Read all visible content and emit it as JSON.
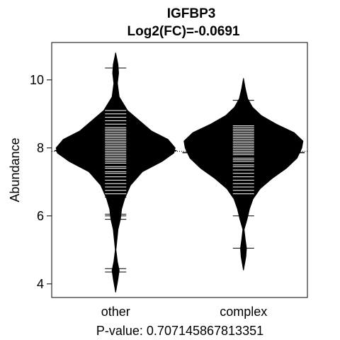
{
  "chart_data": {
    "type": "beanplot",
    "title": "IGFBP3",
    "subtitle": "Log2(FC)=-0.0691",
    "ylabel": "Abundance",
    "xlabel": "P-value: 0.707145867813351",
    "categories": [
      "other",
      "complex"
    ],
    "yticks": [
      4,
      6,
      8,
      10
    ],
    "ylim": [
      3.6,
      11.1
    ],
    "overall_mean": 7.9,
    "groups": [
      {
        "name": "other",
        "mean": 7.92,
        "density": [
          [
            3.75,
            0.0
          ],
          [
            4.15,
            0.04
          ],
          [
            4.4,
            0.06
          ],
          [
            4.65,
            0.03
          ],
          [
            5.0,
            0.005
          ],
          [
            5.6,
            0.04
          ],
          [
            5.9,
            0.08
          ],
          [
            6.2,
            0.1
          ],
          [
            6.5,
            0.15
          ],
          [
            6.9,
            0.25
          ],
          [
            7.3,
            0.45
          ],
          [
            7.6,
            0.78
          ],
          [
            7.85,
            0.98
          ],
          [
            8.0,
            1.0
          ],
          [
            8.25,
            0.88
          ],
          [
            8.5,
            0.6
          ],
          [
            8.8,
            0.4
          ],
          [
            9.1,
            0.2
          ],
          [
            9.5,
            0.06
          ],
          [
            9.9,
            0.03
          ],
          [
            10.2,
            0.05
          ],
          [
            10.45,
            0.04
          ],
          [
            10.8,
            0.0
          ]
        ],
        "points": [
          4.35,
          4.45,
          5.9,
          6.0,
          6.05,
          6.55,
          6.6,
          6.65,
          6.75,
          6.85,
          6.95,
          7.05,
          7.15,
          7.25,
          7.3,
          7.4,
          7.45,
          7.55,
          7.6,
          7.65,
          7.7,
          7.75,
          7.8,
          7.85,
          7.9,
          7.95,
          8.0,
          8.05,
          8.1,
          8.15,
          8.2,
          8.25,
          8.3,
          8.35,
          8.4,
          8.45,
          8.5,
          8.55,
          8.6,
          8.7,
          8.8,
          8.9,
          9.0,
          9.1,
          10.35
        ]
      },
      {
        "name": "complex",
        "mean": 7.86,
        "density": [
          [
            4.4,
            0.0
          ],
          [
            4.8,
            0.04
          ],
          [
            5.05,
            0.05
          ],
          [
            5.3,
            0.03
          ],
          [
            5.6,
            0.01
          ],
          [
            5.9,
            0.06
          ],
          [
            6.2,
            0.1
          ],
          [
            6.5,
            0.16
          ],
          [
            6.8,
            0.28
          ],
          [
            7.1,
            0.48
          ],
          [
            7.4,
            0.72
          ],
          [
            7.7,
            0.9
          ],
          [
            8.0,
            0.98
          ],
          [
            8.2,
            1.0
          ],
          [
            8.45,
            0.85
          ],
          [
            8.7,
            0.55
          ],
          [
            8.95,
            0.3
          ],
          [
            9.2,
            0.15
          ],
          [
            9.45,
            0.07
          ],
          [
            9.75,
            0.03
          ],
          [
            10.05,
            0.0
          ]
        ],
        "points": [
          5.05,
          6.0,
          6.65,
          6.75,
          6.85,
          6.95,
          7.05,
          7.15,
          7.25,
          7.35,
          7.45,
          7.5,
          7.6,
          7.65,
          7.7,
          7.8,
          7.85,
          7.9,
          7.95,
          8.0,
          8.05,
          8.1,
          8.15,
          8.2,
          8.25,
          8.3,
          8.35,
          8.4,
          8.45,
          8.5,
          8.55,
          8.6,
          8.65,
          9.4
        ]
      }
    ]
  }
}
